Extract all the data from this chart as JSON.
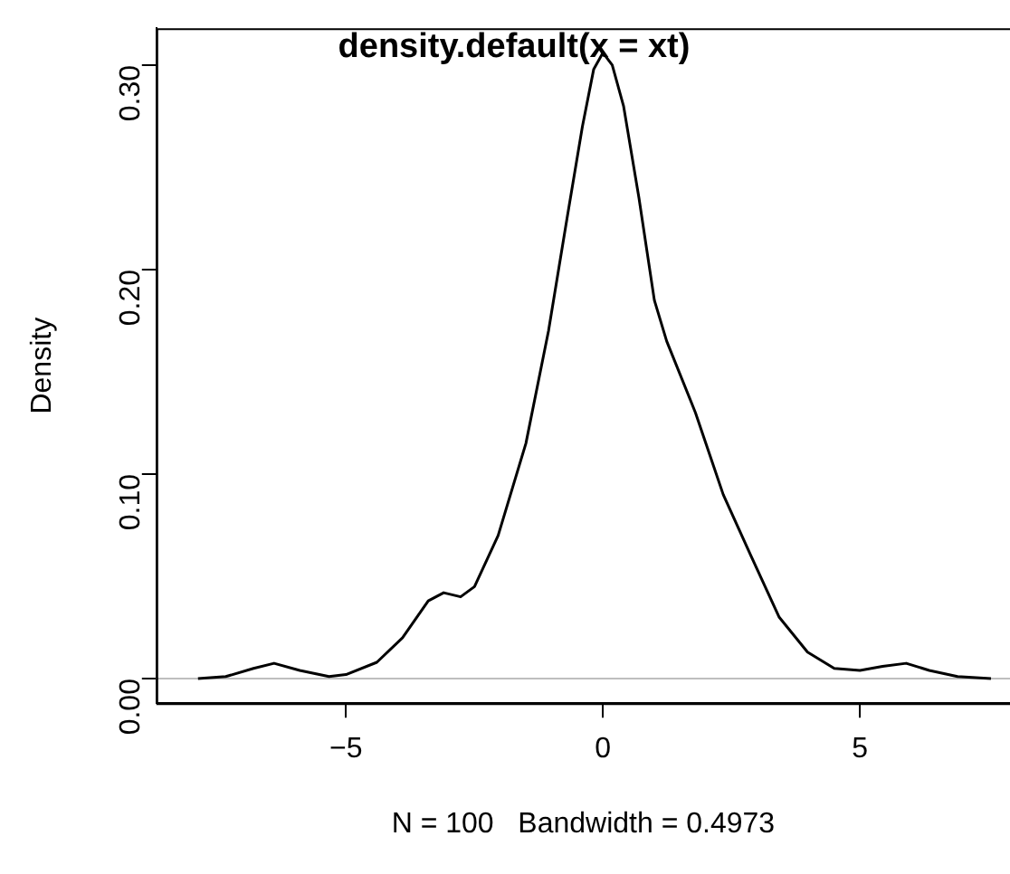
{
  "chart_data": {
    "type": "line",
    "title": "density.default(x = xt)",
    "xlabel": "N = 100   Bandwidth = 0.4973",
    "ylabel": "Density",
    "x": [
      -7.88,
      -7.34,
      -6.8,
      -6.4,
      -5.9,
      -5.33,
      -5.0,
      -4.4,
      -3.9,
      -3.4,
      -3.1,
      -2.77,
      -2.5,
      -2.04,
      -1.5,
      -1.06,
      -0.7,
      -0.4,
      -0.18,
      0.0,
      0.18,
      0.4,
      0.7,
      1.0,
      1.24,
      1.8,
      2.34,
      2.88,
      3.43,
      3.98,
      4.5,
      5.0,
      5.44,
      5.9,
      6.35,
      6.9,
      7.55
    ],
    "series": [
      {
        "color": "#000000",
        "values": [
          0.0,
          0.001,
          0.005,
          0.0075,
          0.004,
          0.001,
          0.002,
          0.008,
          0.02,
          0.038,
          0.042,
          0.04,
          0.045,
          0.07,
          0.115,
          0.17,
          0.225,
          0.27,
          0.298,
          0.306,
          0.3,
          0.28,
          0.235,
          0.185,
          0.165,
          0.13,
          0.09,
          0.06,
          0.03,
          0.013,
          0.005,
          0.004,
          0.006,
          0.0075,
          0.004,
          0.001,
          0.0
        ]
      }
    ],
    "xlim": [
      -8.69,
      7.92
    ],
    "ylim": [
      -0.012,
      0.318
    ],
    "xticks": [
      {
        "value": -5,
        "label": "−5"
      },
      0,
      5
    ],
    "yticks": [
      {
        "value": 0,
        "label": "0.00"
      },
      {
        "value": 0.1,
        "label": "0.10"
      },
      {
        "value": 0.2,
        "label": "0.20"
      },
      {
        "value": 0.3,
        "label": "0.30"
      }
    ],
    "ref_lines": [
      {
        "axis": "y",
        "value": 0,
        "color": "#bebebe"
      }
    ],
    "grid": false,
    "legend": false,
    "marker": "none",
    "line_style": "solid"
  }
}
